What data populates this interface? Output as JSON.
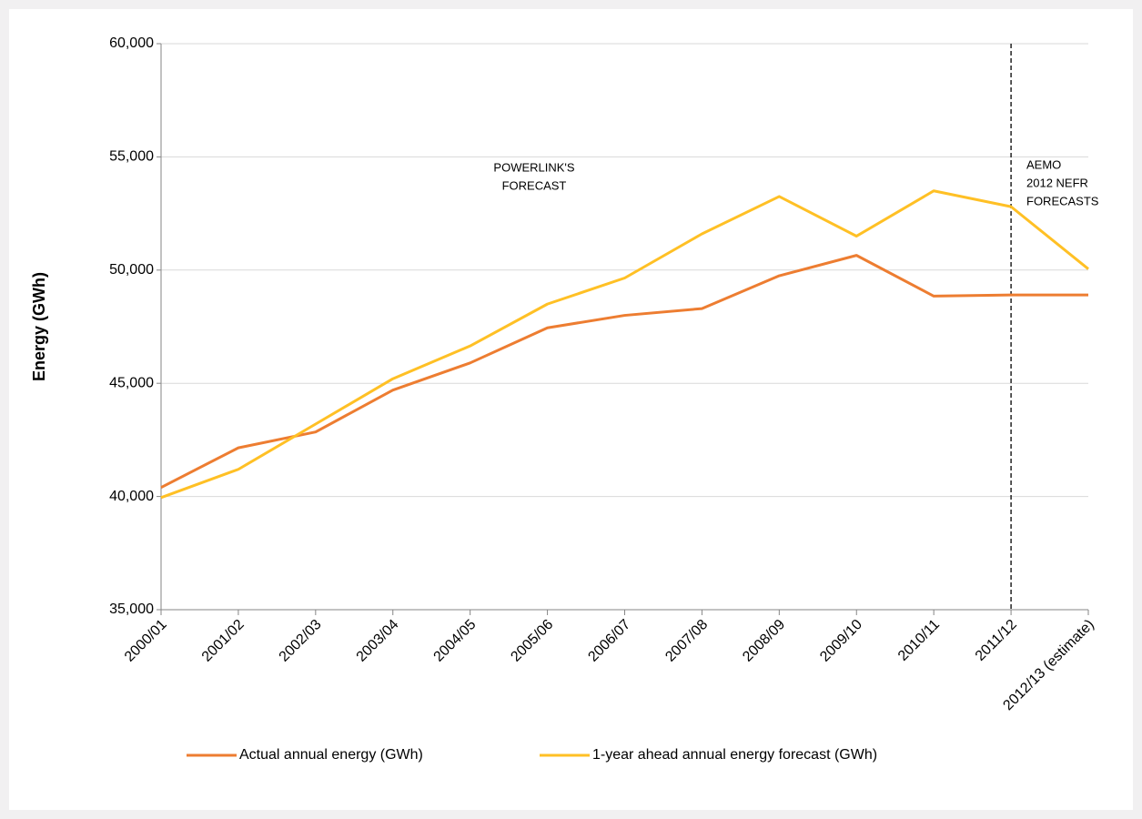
{
  "chart_data": {
    "type": "line",
    "y_label": "Energy (GWh)",
    "categories": [
      "2000/01",
      "2001/02",
      "2002/03",
      "2003/04",
      "2004/05",
      "2005/06",
      "2006/07",
      "2007/08",
      "2008/09",
      "2009/10",
      "2010/11",
      "2011/12",
      "2012/13 (estimate)"
    ],
    "series": [
      {
        "name": "Actual annual energy (GWh)",
        "color": "#ed7d31",
        "values": [
          40400,
          42150,
          42850,
          44700,
          45900,
          47450,
          48000,
          48300,
          49750,
          50650,
          48850,
          48900,
          48900
        ]
      },
      {
        "name": "1-year ahead annual energy forecast (GWh)",
        "color": "#ffc025",
        "values": [
          39950,
          41200,
          43200,
          45200,
          46650,
          48500,
          49650,
          51600,
          53250,
          51500,
          53500,
          52800,
          50050
        ]
      }
    ],
    "ylim": [
      35000,
      60000
    ],
    "yticks": [
      {
        "value": 35000,
        "label": "35,000"
      },
      {
        "value": 40000,
        "label": "40,000"
      },
      {
        "value": 45000,
        "label": "45,000"
      },
      {
        "value": 50000,
        "label": "50,000"
      },
      {
        "value": 55000,
        "label": "55,000"
      },
      {
        "value": 60000,
        "label": "60,000"
      }
    ],
    "grid": true,
    "annotations": [
      {
        "lines": [
          "POWERLINK'S",
          "FORECAST"
        ]
      },
      {
        "lines": [
          "AEMO",
          "2012 NEFR",
          "FORECASTS"
        ]
      }
    ]
  }
}
